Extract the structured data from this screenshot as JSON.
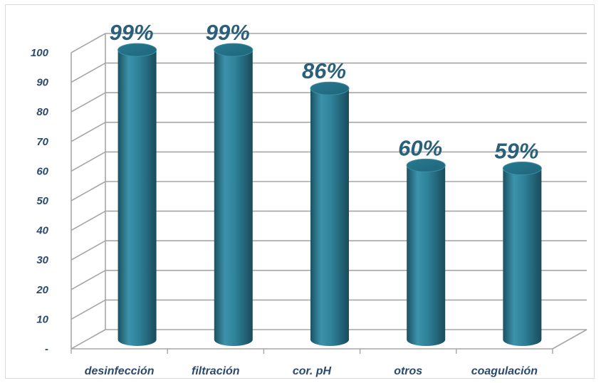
{
  "chart_data": {
    "type": "bar",
    "title": "",
    "xlabel": "",
    "ylabel": "",
    "categories": [
      "desinfección",
      "filtración",
      "cor. pH",
      "otros",
      "coagulación"
    ],
    "values": [
      99,
      99,
      86,
      60,
      59
    ],
    "data_labels": [
      "99%",
      "99%",
      "86%",
      "60%",
      "59%"
    ],
    "ylim": [
      0,
      100
    ],
    "yticks": [
      0,
      10,
      20,
      30,
      40,
      50,
      60,
      70,
      80,
      90,
      100
    ],
    "ytick_labels": [
      "-",
      "10",
      "20",
      "30",
      "40",
      "50",
      "60",
      "70",
      "80",
      "90",
      "100"
    ],
    "grid": true,
    "style": "3d-cylinder",
    "bar_color": "#2e8199",
    "text_color": "#2c4a6c",
    "label_color": "#2a6079"
  }
}
